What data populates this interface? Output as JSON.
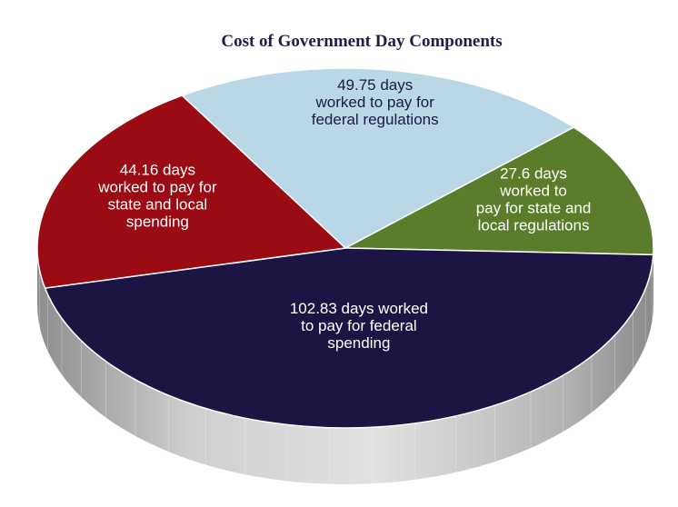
{
  "chart_data": {
    "type": "pie",
    "title": "Cost of Government Day Components",
    "slices": [
      {
        "name": "federal-regulations",
        "value": 49.75,
        "label_lines": [
          "49.75 days",
          "worked to pay for",
          "federal regulations"
        ],
        "color": "#b9d7e5",
        "text_color": "#1b1b45"
      },
      {
        "name": "state-local-regulations",
        "value": 27.6,
        "label_lines": [
          "27.6 days",
          "worked to",
          "pay for state and",
          "local regulations"
        ],
        "color": "#5b7d2b",
        "text_color": "#ffffff"
      },
      {
        "name": "federal-spending",
        "value": 102.83,
        "label_lines": [
          "102.83 days worked",
          "to pay for federal",
          "spending"
        ],
        "color": "#1c1442",
        "text_color": "#ffffff"
      },
      {
        "name": "state-local-spending",
        "value": 44.16,
        "label_lines": [
          "44.16 days",
          "worked to pay for",
          "state and local",
          "spending"
        ],
        "color": "#9b0b14",
        "text_color": "#ffffff"
      }
    ]
  }
}
